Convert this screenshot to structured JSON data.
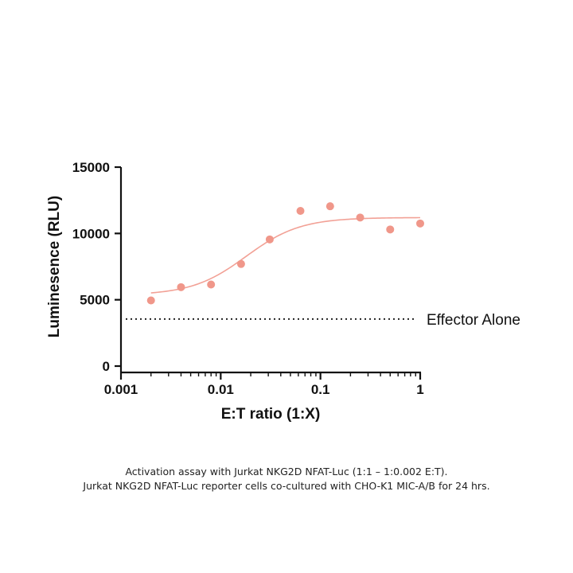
{
  "chart_data": {
    "type": "scatter",
    "xlabel": "E:T ratio  (1:X)",
    "ylabel": "Luminesence (RLU)",
    "x_scale": "log",
    "xlim": [
      0.001,
      1
    ],
    "ylim": [
      0,
      15000
    ],
    "x_ticks": [
      0.001,
      0.01,
      0.1,
      1
    ],
    "x_tick_labels": [
      "0.001",
      "0.01",
      "0.1",
      "1"
    ],
    "y_ticks": [
      0,
      5000,
      10000,
      15000
    ],
    "y_tick_labels": [
      "0",
      "5000",
      "10000",
      "15000"
    ],
    "grid": false,
    "colors": {
      "points": "#f0978a",
      "fit": "#f2a196",
      "reference": "#222222"
    },
    "series": [
      {
        "x": [
          0.002,
          0.004,
          0.008,
          0.016,
          0.031,
          0.063,
          0.125,
          0.25,
          0.5,
          1
        ],
        "y": [
          4950,
          5950,
          6150,
          7700,
          9550,
          11700,
          12050,
          11200,
          10300,
          10750
        ]
      }
    ],
    "fit": {
      "type": "4PL",
      "bottom": 5350,
      "top": 11200,
      "ec50": 0.018,
      "hill": 1.6
    },
    "reference_line": {
      "y": 3550,
      "label": "Effector Alone"
    }
  },
  "caption": {
    "line1": "Activation assay with Jurkat NKG2D NFAT-Luc (1:1 – 1:0.002 E:T).",
    "line2": "Jurkat NKG2D NFAT-Luc reporter cells co-cultured with CHO-K1 MIC-A/B for 24 hrs."
  }
}
